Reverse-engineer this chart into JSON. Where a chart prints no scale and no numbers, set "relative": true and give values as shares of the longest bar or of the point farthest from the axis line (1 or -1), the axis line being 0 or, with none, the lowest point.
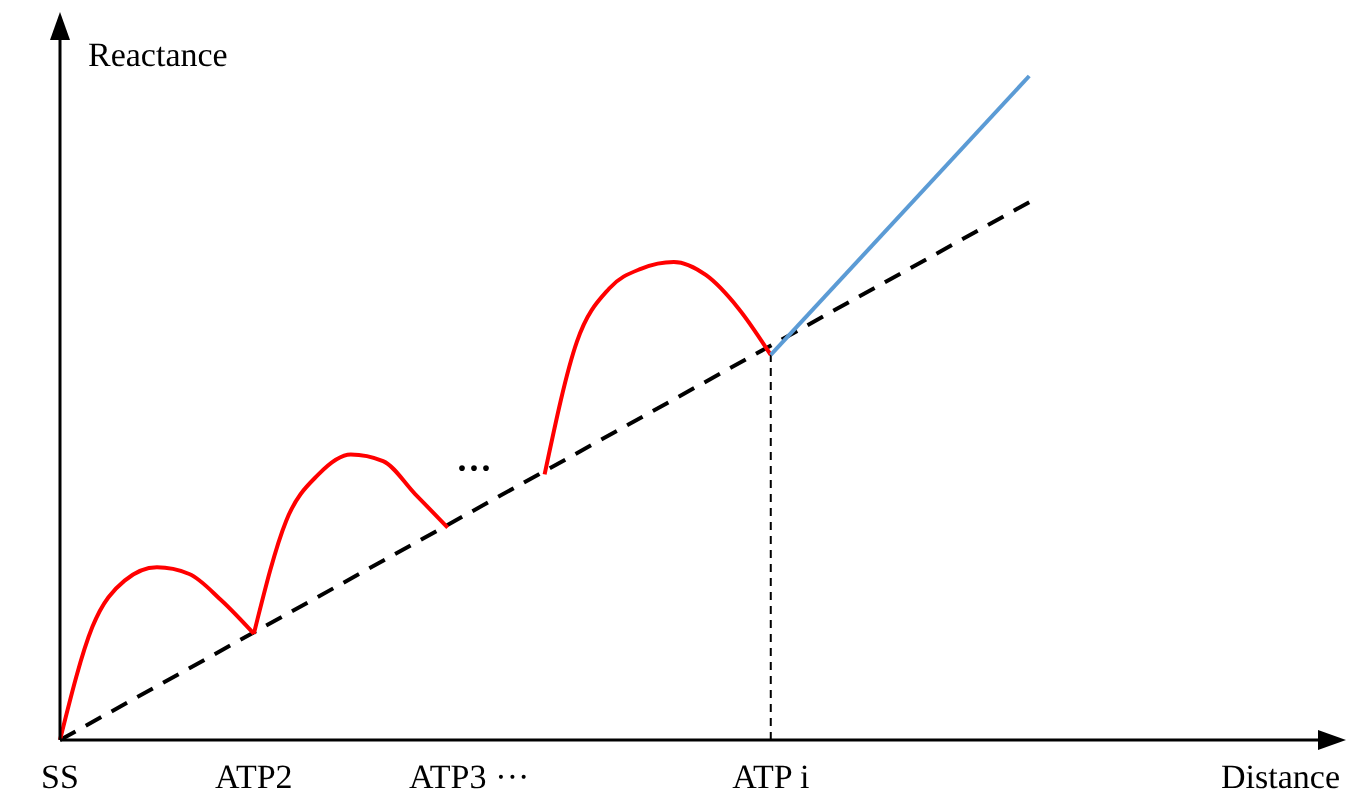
{
  "chart_data": {
    "type": "line",
    "relative": true,
    "xlabel": "Distance",
    "ylabel": "Reactance",
    "categories": [
      "SS",
      null,
      null,
      null,
      null,
      null,
      "ATP2",
      null,
      null,
      null,
      null,
      null,
      "ATP3",
      null,
      "···",
      null,
      null,
      null,
      null,
      null,
      null,
      null,
      "ATP i",
      null,
      null,
      null,
      null,
      null,
      null,
      null,
      null,
      null,
      null,
      null,
      null,
      null,
      null,
      null,
      null,
      null
    ],
    "marker": "none",
    "series": [
      {
        "color": "#000000",
        "line_style": "dashed",
        "values": [
          0,
          null,
          null,
          null,
          null,
          null,
          null,
          null,
          null,
          null,
          null,
          null,
          null,
          null,
          null,
          null,
          null,
          null,
          null,
          null,
          null,
          null,
          null,
          null,
          null,
          null,
          null,
          null,
          null,
          null,
          0.81,
          null,
          null,
          null,
          null,
          null,
          null,
          null,
          null,
          null
        ]
      },
      {
        "color": "#ff0000",
        "line_style": "solid",
        "values": [
          0,
          0.17,
          0.24,
          0.26,
          0.25,
          0.21,
          0.16,
          null,
          null,
          null,
          null,
          null,
          null,
          null,
          null,
          null,
          null,
          null,
          null,
          null,
          null,
          null,
          null,
          null,
          null,
          null,
          null,
          null,
          null,
          null,
          null,
          null,
          null,
          null,
          null,
          null,
          null,
          null,
          null,
          null
        ]
      },
      {
        "color": "#ff0000",
        "line_style": "solid",
        "values": [
          null,
          null,
          null,
          null,
          null,
          null,
          0.16,
          0.33,
          0.4,
          0.43,
          0.42,
          0.37,
          0.32,
          null,
          null,
          null,
          null,
          null,
          null,
          null,
          null,
          null,
          null,
          null,
          null,
          null,
          null,
          null,
          null,
          null,
          null,
          null,
          null,
          null,
          null,
          null,
          null,
          null,
          null,
          null
        ]
      },
      {
        "color": "#ff0000",
        "line_style": "solid",
        "values": [
          null,
          null,
          null,
          null,
          null,
          null,
          null,
          null,
          null,
          null,
          null,
          null,
          null,
          null,
          null,
          0.4,
          0.6,
          0.68,
          0.71,
          0.72,
          0.7,
          0.65,
          0.58,
          null,
          null,
          null,
          null,
          null,
          null,
          null,
          null,
          null,
          null,
          null,
          null,
          null,
          null,
          null,
          null,
          null
        ]
      },
      {
        "color": "#5b9bd5",
        "line_style": "solid",
        "values": [
          null,
          null,
          null,
          null,
          null,
          null,
          null,
          null,
          null,
          null,
          null,
          null,
          null,
          null,
          null,
          null,
          null,
          null,
          null,
          null,
          null,
          null,
          0.58,
          null,
          null,
          null,
          null,
          null,
          null,
          null,
          1.0,
          null,
          null,
          null,
          null,
          null,
          null,
          null,
          null,
          null
        ]
      }
    ],
    "ref_lines": [
      {
        "axis": "x",
        "value": "ATP i",
        "label": null,
        "color": "#000000",
        "line_style": "dashed"
      }
    ],
    "annotations": [
      "···"
    ]
  }
}
